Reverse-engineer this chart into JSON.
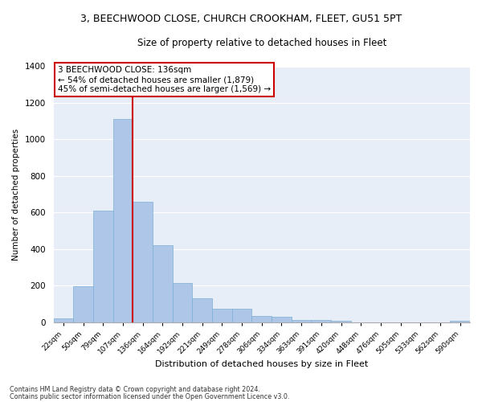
{
  "title_line1": "3, BEECHWOOD CLOSE, CHURCH CROOKHAM, FLEET, GU51 5PT",
  "title_line2": "Size of property relative to detached houses in Fleet",
  "xlabel": "Distribution of detached houses by size in Fleet",
  "ylabel": "Number of detached properties",
  "categories": [
    "22sqm",
    "50sqm",
    "79sqm",
    "107sqm",
    "136sqm",
    "164sqm",
    "192sqm",
    "221sqm",
    "249sqm",
    "278sqm",
    "306sqm",
    "334sqm",
    "363sqm",
    "391sqm",
    "420sqm",
    "448sqm",
    "476sqm",
    "505sqm",
    "533sqm",
    "562sqm",
    "590sqm"
  ],
  "values": [
    20,
    195,
    610,
    1110,
    660,
    420,
    215,
    130,
    75,
    75,
    35,
    28,
    14,
    14,
    10,
    0,
    0,
    0,
    0,
    0,
    10
  ],
  "bar_color": "#aec6e8",
  "bar_edge_color": "#7aafd4",
  "vline_x": 3.5,
  "vline_color": "#cc0000",
  "ylim": [
    0,
    1400
  ],
  "yticks": [
    0,
    200,
    400,
    600,
    800,
    1000,
    1200,
    1400
  ],
  "annotation_text": "3 BEECHWOOD CLOSE: 136sqm\n← 54% of detached houses are smaller (1,879)\n45% of semi-detached houses are larger (1,569) →",
  "annotation_box_color": "#ffffff",
  "annotation_border_color": "#cc0000",
  "footnote1": "Contains HM Land Registry data © Crown copyright and database right 2024.",
  "footnote2": "Contains public sector information licensed under the Open Government Licence v3.0.",
  "background_color": "#e8eef8",
  "grid_color": "#ffffff"
}
